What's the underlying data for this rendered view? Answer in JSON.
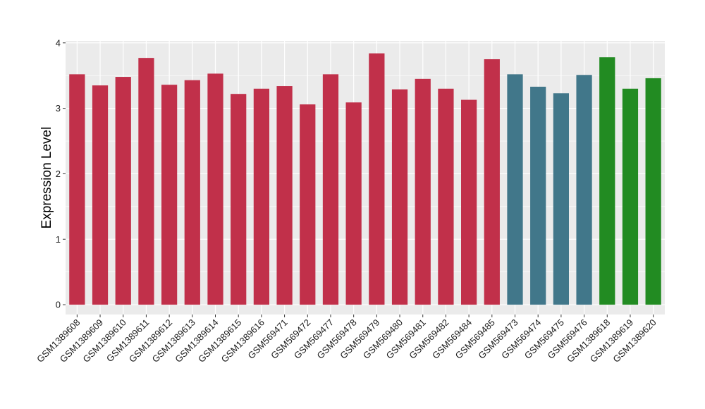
{
  "chart_data": {
    "type": "bar",
    "title": "",
    "xlabel": "",
    "ylabel": "Expression Level",
    "ylim": [
      -0.15,
      4.03
    ],
    "yticks": [
      0,
      1,
      2,
      3,
      4
    ],
    "grid": true,
    "legend": "none",
    "panel_background": "#ebebeb",
    "gridline_color": "#ffffff",
    "categories": [
      "GSM1389608",
      "GSM1389609",
      "GSM1389610",
      "GSM1389611",
      "GSM1389612",
      "GSM1389613",
      "GSM1389614",
      "GSM1389615",
      "GSM1389616",
      "GSM569471",
      "GSM569472",
      "GSM569477",
      "GSM569478",
      "GSM569479",
      "GSM569480",
      "GSM569481",
      "GSM569482",
      "GSM569484",
      "GSM569485",
      "GSM569473",
      "GSM569474",
      "GSM569475",
      "GSM569476",
      "GSM1389618",
      "GSM1389619",
      "GSM1389620"
    ],
    "values": [
      3.52,
      3.35,
      3.48,
      3.77,
      3.36,
      3.43,
      3.53,
      3.22,
      3.3,
      3.34,
      3.06,
      3.52,
      3.09,
      3.84,
      3.29,
      3.45,
      3.3,
      3.13,
      3.75,
      3.52,
      3.33,
      3.23,
      3.51,
      3.78,
      3.3,
      3.46
    ],
    "bar_colors": [
      "#c1304a",
      "#c1304a",
      "#c1304a",
      "#c1304a",
      "#c1304a",
      "#c1304a",
      "#c1304a",
      "#c1304a",
      "#c1304a",
      "#c1304a",
      "#c1304a",
      "#c1304a",
      "#c1304a",
      "#c1304a",
      "#c1304a",
      "#c1304a",
      "#c1304a",
      "#c1304a",
      "#c1304a",
      "#41778a",
      "#41778a",
      "#41778a",
      "#41778a",
      "#228b22",
      "#228b22",
      "#228b22"
    ]
  }
}
